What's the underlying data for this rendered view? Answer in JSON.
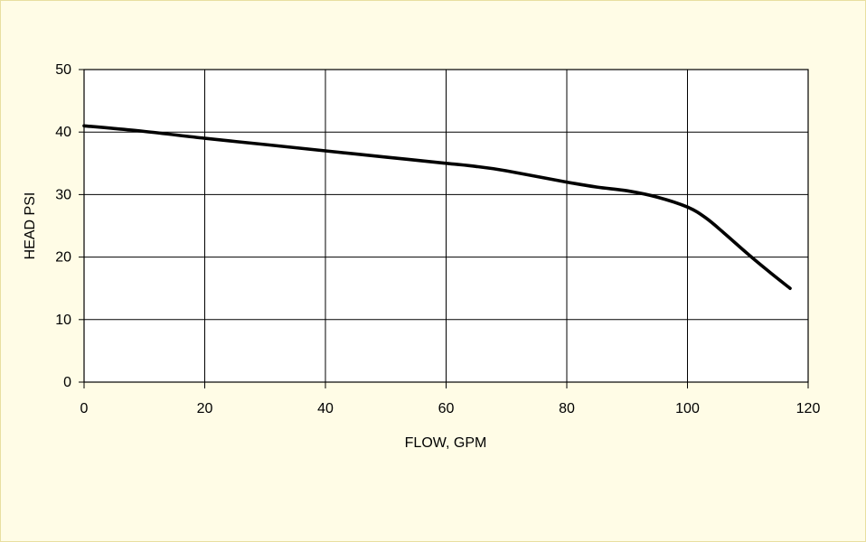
{
  "chart_data": {
    "type": "line",
    "title": "",
    "xlabel": "FLOW, GPM",
    "ylabel": "HEAD PSI",
    "xlim": [
      0,
      120
    ],
    "ylim": [
      0,
      50
    ],
    "x_ticks": [
      0,
      20,
      40,
      60,
      80,
      100,
      120
    ],
    "y_ticks": [
      0,
      10,
      20,
      30,
      40,
      50
    ],
    "grid": true,
    "legend": "none",
    "series": [
      {
        "color": "#000000",
        "points": [
          [
            0,
            41
          ],
          [
            10,
            40.1
          ],
          [
            20,
            39
          ],
          [
            30,
            38
          ],
          [
            40,
            37
          ],
          [
            50,
            36
          ],
          [
            60,
            35
          ],
          [
            65,
            34.5
          ],
          [
            70,
            33.8
          ],
          [
            80,
            32
          ],
          [
            85,
            31.2
          ],
          [
            90,
            30.6
          ],
          [
            95,
            29.6
          ],
          [
            100,
            28
          ],
          [
            103,
            26.3
          ],
          [
            106,
            23.9
          ],
          [
            110,
            20.5
          ],
          [
            114,
            17.3
          ],
          [
            117,
            15
          ]
        ]
      }
    ]
  },
  "colors": {
    "background": "#fffce6",
    "plot_background": "#ffffff",
    "grid": "#000000",
    "line": "#000000"
  }
}
